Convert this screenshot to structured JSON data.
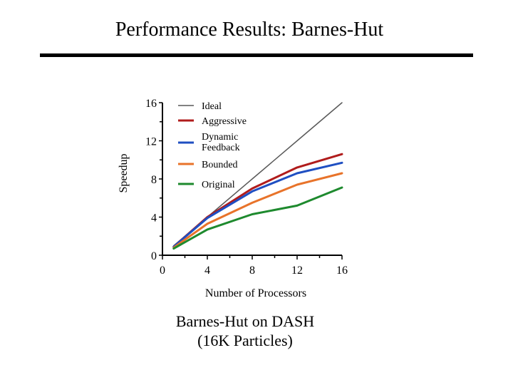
{
  "slide": {
    "title": "Performance Results: Barnes-Hut",
    "caption_line1": "Barnes-Hut on DASH",
    "caption_line2": "(16K Particles)"
  },
  "chart_data": {
    "type": "line",
    "title": "",
    "xlabel": "Number of Processors",
    "ylabel": "Speedup",
    "xlim": [
      0,
      16
    ],
    "ylim": [
      0,
      16
    ],
    "xticks": [
      0,
      4,
      8,
      12,
      16
    ],
    "yticks": [
      0,
      4,
      8,
      12,
      16
    ],
    "grid": false,
    "legend": "top-left",
    "series": [
      {
        "name": "Ideal",
        "color": "#595959",
        "x": [
          1,
          4,
          8,
          12,
          16
        ],
        "y": [
          1,
          4,
          8,
          12,
          16
        ]
      },
      {
        "name": "Aggressive",
        "color": "#b01c1c",
        "x": [
          1,
          4,
          8,
          12,
          16
        ],
        "y": [
          0.9,
          4.0,
          7.0,
          9.2,
          10.6
        ]
      },
      {
        "name": "Dynamic Feedback",
        "color": "#1f4fc2",
        "x": [
          1,
          4,
          8,
          12,
          16
        ],
        "y": [
          0.9,
          3.9,
          6.7,
          8.6,
          9.7
        ]
      },
      {
        "name": "Bounded",
        "color": "#e8732a",
        "x": [
          1,
          4,
          8,
          12,
          16
        ],
        "y": [
          0.8,
          3.3,
          5.5,
          7.4,
          8.6
        ]
      },
      {
        "name": "Original",
        "color": "#1e8a2e",
        "x": [
          1,
          4,
          8,
          12,
          16
        ],
        "y": [
          0.7,
          2.7,
          4.3,
          5.2,
          7.1
        ]
      }
    ]
  }
}
